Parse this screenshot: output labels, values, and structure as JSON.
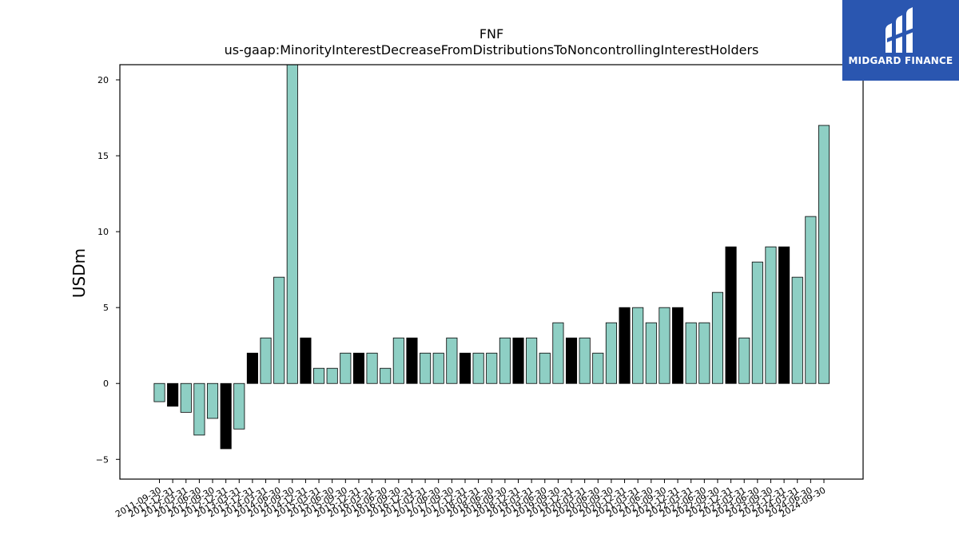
{
  "chart_data": {
    "type": "bar",
    "title": "FNF",
    "subtitle": "us-gaap:MinorityInterestDecreaseFromDistributionsToNoncontrollingInterestHolders",
    "xlabel": "",
    "ylabel": "USDm",
    "ylim": [
      -6.3,
      21
    ],
    "yticks": [
      -5,
      0,
      5,
      10,
      15,
      20
    ],
    "grid": false,
    "colors": {
      "quarterly": "#8ecfc4",
      "annual": "#000000"
    },
    "categories": [
      "2011-09-30",
      "2011-12-31",
      "2012-03-31",
      "2012-06-30",
      "2012-09-30",
      "2012-12-31",
      "2013-03-31",
      "2013-12-31",
      "2014-03-31",
      "2014-06-30",
      "2014-09-30",
      "2014-12-31",
      "2015-03-31",
      "2015-06-30",
      "2015-09-30",
      "2015-12-31",
      "2016-03-31",
      "2016-06-30",
      "2016-09-30",
      "2016-12-31",
      "2017-03-31",
      "2017-06-30",
      "2017-09-30",
      "2017-12-31",
      "2018-03-31",
      "2018-06-30",
      "2018-09-30",
      "2018-12-31",
      "2019-03-31",
      "2019-06-30",
      "2019-09-30",
      "2019-12-31",
      "2020-03-31",
      "2020-06-30",
      "2020-09-30",
      "2020-12-31",
      "2021-03-31",
      "2021-06-30",
      "2021-09-30",
      "2021-12-31",
      "2022-03-31",
      "2022-06-30",
      "2022-09-30",
      "2022-12-31",
      "2023-03-31",
      "2023-06-30",
      "2023-09-30",
      "2023-12-31",
      "2024-03-31",
      "2024-06-30",
      "2024-09-30"
    ],
    "values": [
      -1.2,
      -1.5,
      -1.9,
      -3.4,
      -2.3,
      -4.3,
      -3.0,
      2,
      3,
      7,
      21,
      3,
      1,
      1,
      2,
      2,
      2,
      1,
      3,
      3,
      2,
      2,
      3,
      2,
      2,
      2,
      3,
      3,
      3,
      2,
      4,
      3,
      3,
      2,
      4,
      5,
      5,
      4,
      5,
      5,
      4,
      4,
      6,
      9,
      3,
      8,
      9,
      9,
      7,
      11,
      17
    ],
    "annual": [
      false,
      true,
      false,
      false,
      false,
      true,
      false,
      true,
      false,
      false,
      false,
      true,
      false,
      false,
      false,
      true,
      false,
      false,
      false,
      true,
      false,
      false,
      false,
      true,
      false,
      false,
      false,
      true,
      false,
      false,
      false,
      true,
      false,
      false,
      false,
      true,
      false,
      false,
      false,
      true,
      false,
      false,
      false,
      true,
      false,
      false,
      false,
      true,
      false,
      false,
      false
    ]
  },
  "logo": {
    "text": "MIDGARD FINANCE",
    "icon": "midgard-logo-icon"
  }
}
